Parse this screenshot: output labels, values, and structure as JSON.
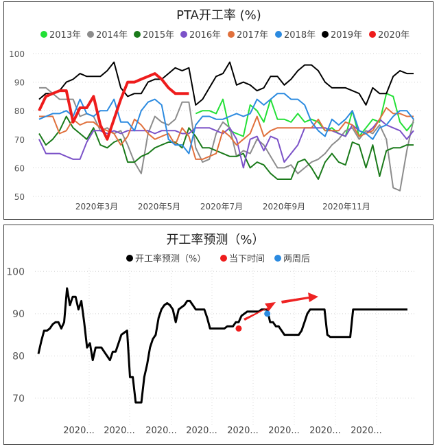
{
  "chart_data": [
    {
      "type": "line",
      "title": "PTA开工率 (%)",
      "x_tick_labels": [
        "2020年3月",
        "2020年5月",
        "2020年7月",
        "2020年9月",
        "2020年11月"
      ],
      "ylim": [
        50,
        100
      ],
      "y_ticks": [
        100,
        90,
        80,
        70,
        60,
        50
      ],
      "grid": "horizontal-dotted",
      "legend": "top",
      "series": [
        {
          "name": "2013年",
          "color": "#22e036",
          "values": [
            null,
            null,
            null,
            null,
            null,
            null,
            null,
            null,
            null,
            null,
            null,
            null,
            null,
            null,
            null,
            null,
            null,
            null,
            null,
            null,
            null,
            null,
            null,
            79,
            80,
            80,
            79,
            84,
            73,
            72,
            71,
            82,
            80,
            76,
            84,
            77,
            77,
            76,
            79,
            76,
            77,
            76,
            73,
            74,
            72,
            71,
            80,
            71,
            74,
            77,
            76,
            86,
            85,
            76,
            73,
            76
          ]
        },
        {
          "name": "2014年",
          "color": "#8c8c8c",
          "values": [
            88,
            88,
            86,
            84,
            84,
            84,
            78,
            79,
            78,
            73,
            74,
            72,
            73,
            68,
            62,
            58,
            72,
            78,
            76,
            75,
            77,
            83,
            83,
            67,
            62,
            63,
            72,
            76,
            74,
            64,
            66,
            65,
            70,
            68,
            64,
            60,
            60,
            61,
            58,
            60,
            62,
            63,
            65,
            68,
            70,
            73,
            74,
            70,
            73,
            72,
            75,
            70,
            53,
            52,
            66,
            77
          ]
        },
        {
          "name": "2015年",
          "color": "#1a7a1a",
          "values": [
            72,
            68,
            70,
            73,
            78,
            74,
            72,
            70,
            74,
            68,
            67,
            69,
            70,
            62,
            62,
            64,
            65,
            67,
            68,
            69,
            69,
            67,
            74,
            71,
            67,
            67,
            66,
            65,
            64,
            64,
            65,
            60,
            62,
            61,
            58,
            56,
            56,
            56,
            62,
            63,
            60,
            56,
            62,
            65,
            62,
            61,
            69,
            68,
            60,
            68,
            57,
            66,
            67,
            67,
            68,
            68
          ]
        },
        {
          "name": "2016年",
          "color": "#7b52c8",
          "values": [
            70,
            65,
            65,
            65,
            64,
            63,
            63,
            69,
            73,
            73,
            72,
            73,
            72,
            73,
            73,
            73,
            73,
            72,
            73,
            73,
            73,
            72,
            72,
            74,
            74,
            74,
            73,
            72,
            74,
            70,
            60,
            70,
            71,
            66,
            71,
            70,
            62,
            65,
            68,
            74,
            74,
            74,
            74,
            73,
            72,
            71,
            75,
            73,
            72,
            74,
            77,
            75,
            74,
            73,
            70,
            73
          ]
        },
        {
          "name": "2017年",
          "color": "#e0703c",
          "values": [
            78,
            78,
            78,
            72,
            73,
            77,
            75,
            76,
            76,
            74,
            73,
            72,
            68,
            71,
            77,
            75,
            72,
            70,
            71,
            72,
            68,
            74,
            71,
            63,
            63,
            64,
            65,
            73,
            71,
            68,
            70,
            72,
            78,
            71,
            73,
            74,
            74,
            74,
            74,
            74,
            74,
            77,
            73,
            73,
            73,
            76,
            75,
            71,
            72,
            73,
            77,
            81,
            79,
            79,
            78,
            78
          ]
        },
        {
          "name": "2018年",
          "color": "#2b8ae0",
          "values": [
            77,
            78,
            79,
            79,
            80,
            78,
            84,
            79,
            78,
            80,
            80,
            84,
            76,
            76,
            73,
            80,
            83,
            84,
            82,
            70,
            68,
            68,
            65,
            75,
            78,
            78,
            77,
            77,
            78,
            79,
            78,
            79,
            84,
            82,
            84,
            86,
            86,
            84,
            84,
            82,
            76,
            73,
            71,
            77,
            75,
            77,
            80,
            73,
            72,
            70,
            74,
            75,
            78,
            80,
            80,
            77
          ]
        },
        {
          "name": "2019年",
          "color": "#000000",
          "values": [
            84,
            86,
            86,
            87,
            90,
            91,
            93,
            92,
            92,
            92,
            94,
            97,
            88,
            85,
            86,
            86,
            90,
            91,
            91,
            93,
            95,
            94,
            95,
            82,
            84,
            88,
            92,
            93,
            97,
            89,
            90,
            89,
            87,
            88,
            92,
            92,
            89,
            91,
            94,
            96,
            96,
            94,
            90,
            88,
            88,
            88,
            87,
            86,
            82,
            88,
            86,
            86,
            92,
            94,
            93,
            93
          ]
        },
        {
          "name": "2020年",
          "color": "#ee1c1c",
          "values": [
            80,
            85,
            86,
            87,
            87,
            76,
            81,
            81,
            85,
            75,
            70,
            77,
            84,
            90,
            90,
            91,
            92,
            93,
            91,
            88,
            86,
            86,
            86,
            null,
            null,
            null,
            null,
            null,
            null,
            null,
            null,
            null,
            null,
            null,
            null,
            null,
            null,
            null,
            null,
            null,
            null,
            null,
            null,
            null,
            null,
            null,
            null,
            null,
            null,
            null,
            null,
            null,
            null,
            null,
            null,
            null
          ]
        }
      ]
    },
    {
      "type": "line",
      "title": "开工率预测（%）",
      "x_tick_labels": [
        "2020...",
        "2020...",
        "2020...",
        "2020...",
        "2020...",
        "2020...",
        "2020...",
        "2020..."
      ],
      "ylim": [
        63,
        102
      ],
      "y_ticks": [
        100,
        90,
        80,
        70
      ],
      "grid": "dotted",
      "legend": "top",
      "series": [
        {
          "name": "开工率预测（%）",
          "color": "#000000",
          "values": [
            80.5,
            83.5,
            86,
            86,
            86.5,
            87.5,
            88,
            88,
            86.5,
            88,
            96,
            92,
            94,
            94,
            91,
            93,
            88,
            82,
            83,
            79,
            82,
            82,
            82,
            81,
            80,
            79,
            81,
            81,
            83,
            85,
            85.5,
            86,
            75,
            75,
            69,
            69,
            69,
            75,
            78,
            82,
            84,
            85,
            89,
            91,
            92,
            92.5,
            92,
            91,
            88,
            91,
            91.5,
            92,
            93,
            93,
            92,
            91,
            91,
            91,
            91,
            89,
            86.5,
            86.5,
            86.5,
            86.5,
            86.5,
            86.5,
            87,
            87,
            87,
            88,
            88,
            89.5,
            90,
            90.5,
            90.5,
            90.5,
            90.5,
            90.5,
            91,
            91,
            91,
            88,
            88,
            87,
            87,
            86,
            85,
            85,
            85,
            85,
            85,
            85,
            86,
            88,
            90,
            91,
            91,
            91,
            91,
            91,
            91,
            85,
            84.5,
            84.5,
            84.5,
            84.5,
            84.5,
            84.5,
            84.5,
            84.5,
            91,
            91,
            91,
            91,
            91,
            91,
            91,
            91,
            91,
            91,
            91,
            91,
            91,
            91,
            91,
            91,
            91,
            91,
            91,
            91
          ]
        },
        {
          "name": "当下时间",
          "color": "#ee1c1c",
          "points": [
            [
              70,
              86.5
            ]
          ]
        },
        {
          "name": "两周后",
          "color": "#2b8ae0",
          "points": [
            [
              80,
              90
            ]
          ]
        }
      ]
    }
  ]
}
